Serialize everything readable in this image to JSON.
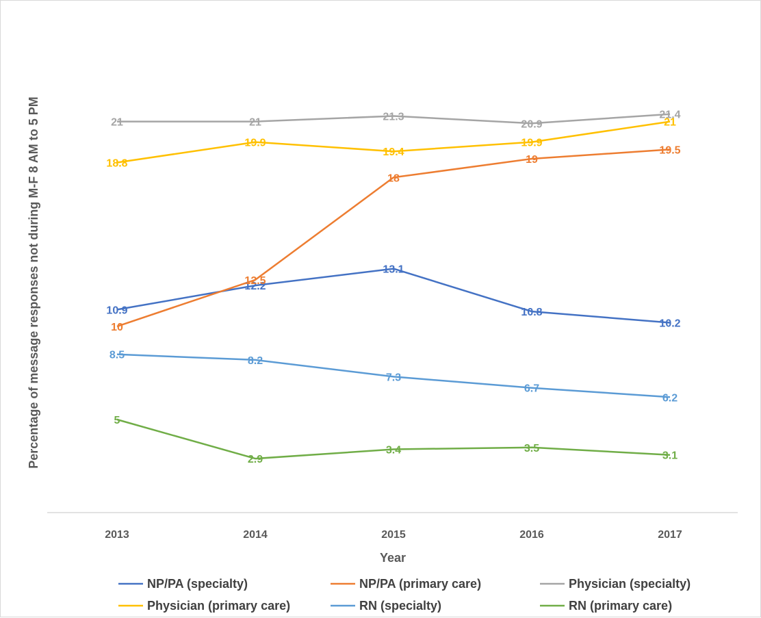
{
  "chart_data": {
    "type": "line",
    "title": "",
    "xlabel": "Year",
    "ylabel": "Percentage of message responses not during  M-F 8 AM to 5 PM",
    "x": [
      "2013",
      "2014",
      "2015",
      "2016",
      "2017"
    ],
    "ylim": [
      0,
      24
    ],
    "grid": false,
    "legend_position": "bottom",
    "series": [
      {
        "name": "NP/PA (specialty)",
        "color": "#4472c4",
        "values": [
          10.9,
          12.2,
          13.1,
          10.8,
          10.2
        ],
        "labels": [
          "10.9",
          "12.2",
          "13.1",
          "10.8",
          "10.2"
        ]
      },
      {
        "name": "NP/PA (primary care)",
        "color": "#ed7d31",
        "values": [
          10,
          12.5,
          18,
          19,
          19.5
        ],
        "labels": [
          "10",
          "12.5",
          "18",
          "19",
          "19.5"
        ]
      },
      {
        "name": "Physician (specialty)",
        "color": "#a5a5a5",
        "values": [
          21,
          21,
          21.3,
          20.9,
          21.4
        ],
        "labels": [
          "21",
          "21",
          "21.3",
          "20.9",
          "21.4"
        ]
      },
      {
        "name": "Physician (primary care)",
        "color": "#ffc000",
        "values": [
          18.8,
          19.9,
          19.4,
          19.9,
          21
        ],
        "labels": [
          "18.8",
          "19.9",
          "19.4",
          "19.9",
          "21"
        ]
      },
      {
        "name": "RN (specialty)",
        "color": "#5b9bd5",
        "values": [
          8.5,
          8.2,
          7.3,
          6.7,
          6.2
        ],
        "labels": [
          "8.5",
          "8.2",
          "7.3",
          "6.7",
          "6.2"
        ]
      },
      {
        "name": "RN (primary care)",
        "color": "#70ad47",
        "values": [
          5,
          2.9,
          3.4,
          3.5,
          3.1
        ],
        "labels": [
          "5",
          "2.9",
          "3.4",
          "3.5",
          "3.1"
        ]
      }
    ]
  }
}
